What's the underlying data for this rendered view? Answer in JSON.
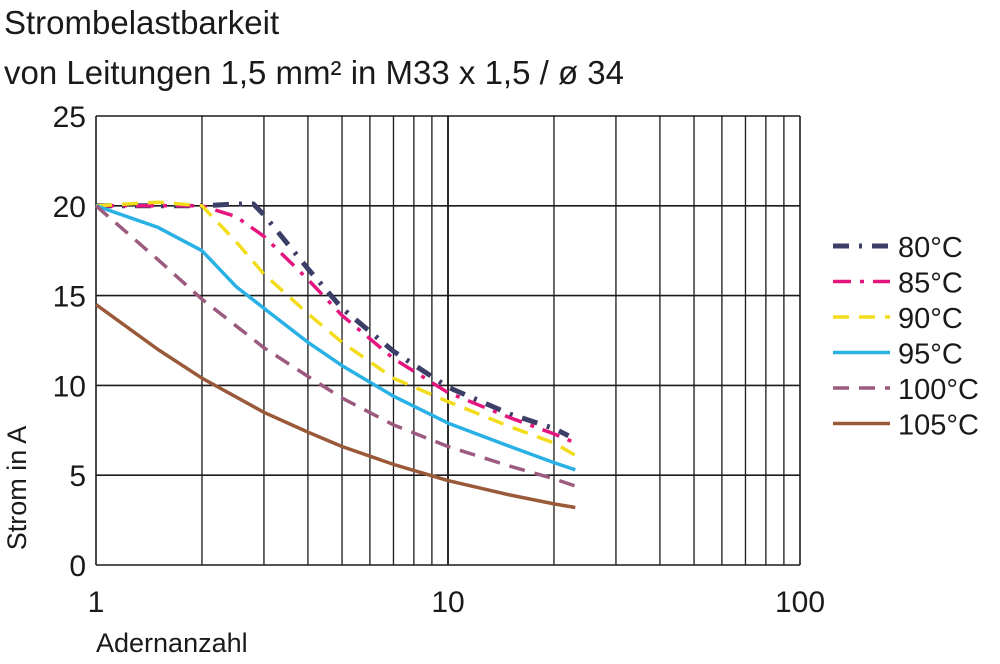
{
  "chart_data": {
    "type": "line",
    "title": "Strombelastbarkeit",
    "subtitle": "von Leitungen 1,5 mm² in M33 x 1,5 / ø 34",
    "xlabel": "Adernanzahl",
    "ylabel": "Strom in A",
    "xscale": "log",
    "xlim": [
      1,
      100
    ],
    "ylim": [
      0,
      25
    ],
    "xticks": [
      1,
      10,
      100
    ],
    "xtick_labels": [
      "1",
      "10",
      "100"
    ],
    "yticks": [
      0,
      5,
      10,
      15,
      20,
      25
    ],
    "ytick_labels": [
      "0",
      "5",
      "10",
      "15",
      "20",
      "25"
    ],
    "grid": true,
    "legend_position": "right",
    "series": [
      {
        "name": "80°C",
        "color": "#3b3e66",
        "dash": "dash-dot",
        "x": [
          1,
          1.5,
          2,
          2.5,
          2.8,
          3,
          4,
          5,
          7,
          10,
          15,
          20,
          22
        ],
        "y": [
          20,
          20,
          20,
          20.1,
          20.1,
          19.5,
          16.5,
          14.3,
          11.9,
          9.9,
          8.4,
          7.6,
          7.2
        ]
      },
      {
        "name": "85°C",
        "color": "#e5157f",
        "dash": "long-dash-dot",
        "x": [
          1,
          1.5,
          2,
          2.5,
          3,
          4,
          5,
          7,
          10,
          15,
          20,
          23
        ],
        "y": [
          20,
          20,
          20,
          19.4,
          18.3,
          15.9,
          13.9,
          11.5,
          9.6,
          8.2,
          7.3,
          6.8
        ]
      },
      {
        "name": "90°C",
        "color": "#f3dc1b",
        "dash": "dashed",
        "x": [
          1,
          1.5,
          2,
          2.5,
          3,
          4,
          5,
          7,
          10,
          15,
          20,
          23
        ],
        "y": [
          20,
          20.2,
          20,
          18,
          16.2,
          14,
          12.4,
          10.4,
          9.1,
          7.7,
          6.8,
          6.1
        ]
      },
      {
        "name": "95°C",
        "color": "#29b1e6",
        "dash": "solid",
        "x": [
          1,
          1.5,
          2,
          2.5,
          3,
          4,
          5,
          7,
          10,
          15,
          20,
          23
        ],
        "y": [
          20,
          18.8,
          17.5,
          15.5,
          14.3,
          12.4,
          11.1,
          9.4,
          7.9,
          6.6,
          5.7,
          5.3
        ]
      },
      {
        "name": "100°C",
        "color": "#9c5a7e",
        "dash": "dashed",
        "x": [
          1,
          1.5,
          2,
          3,
          4,
          5,
          7,
          10,
          15,
          20,
          23
        ],
        "y": [
          20,
          17,
          14.8,
          12.1,
          10.5,
          9.3,
          7.8,
          6.6,
          5.5,
          4.8,
          4.4
        ]
      },
      {
        "name": "105°C",
        "color": "#9a5a3a",
        "dash": "solid",
        "x": [
          1,
          1.5,
          2,
          3,
          4,
          5,
          7,
          10,
          15,
          20,
          23
        ],
        "y": [
          14.5,
          12,
          10.4,
          8.5,
          7.4,
          6.6,
          5.6,
          4.7,
          3.9,
          3.4,
          3.2
        ]
      }
    ]
  }
}
